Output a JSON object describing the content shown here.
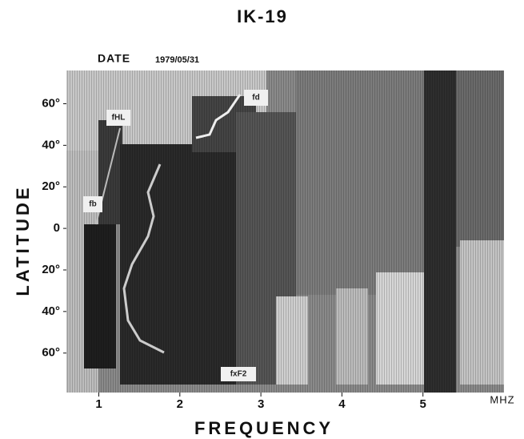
{
  "chart_data": {
    "type": "map",
    "title": "IK-19",
    "date_label": "DATE",
    "date": "1979/05/31",
    "x_label": "FREQUENCY",
    "x_unit": "MHZ",
    "y_label": "LATITUDE",
    "xlim": [
      0.6,
      6.0
    ],
    "xticks": [
      1,
      2,
      3,
      4,
      5
    ],
    "ylim": [
      -79,
      76
    ],
    "yticks": [
      {
        "value": 60,
        "label": "60°"
      },
      {
        "value": 40,
        "label": "40°"
      },
      {
        "value": 20,
        "label": "20°"
      },
      {
        "value": 0,
        "label": "0"
      },
      {
        "value": -20,
        "label": "20°"
      },
      {
        "value": -40,
        "label": "40°"
      },
      {
        "value": -60,
        "label": "60°"
      }
    ],
    "annotations": [
      "fd",
      "fHL",
      "fb",
      "fxF2"
    ]
  }
}
